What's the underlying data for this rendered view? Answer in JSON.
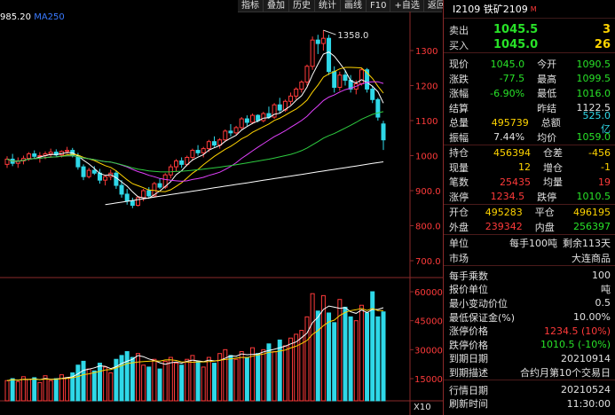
{
  "toolbar": {
    "items": [
      "指标",
      "叠加",
      "历史",
      "统计",
      "画线",
      "F10",
      "+自选",
      "返回"
    ]
  },
  "indicators": {
    "ma250_value": "985.20",
    "ma250_label": "MA250"
  },
  "chart": {
    "high_label": "1358.0",
    "price_ticks": [
      "1300",
      "1200",
      "1100",
      "1000",
      "900.0",
      "800.0",
      "700.0"
    ],
    "volume_ticks": [
      "60000",
      "45000",
      "30000",
      "15000"
    ],
    "volume_unit": "X10",
    "colors": {
      "up": "#ff3a3a",
      "down": "#2fd8e8",
      "ma5": "#ffffff",
      "ma10": "#ffd400",
      "ma20": "#e040fb",
      "ma60": "#2ecc40",
      "ma250": "#ffffff"
    }
  },
  "quote": {
    "title": "I2109 铁矿2109",
    "market_badge": "M",
    "sell": {
      "label": "卖出",
      "price": "1045.5",
      "vol": "3"
    },
    "buy": {
      "label": "买入",
      "price": "1045.0",
      "vol": "26"
    },
    "rows1": [
      {
        "a": "现价",
        "b": "1045.0",
        "bc": "g",
        "c": "今开",
        "d": "1090.5",
        "dc": "g"
      },
      {
        "a": "涨跌",
        "b": "-77.5",
        "bc": "g",
        "c": "最高",
        "d": "1099.5",
        "dc": "g"
      },
      {
        "a": "涨幅",
        "b": "-6.90%",
        "bc": "g",
        "c": "最低",
        "d": "1016.0",
        "dc": "g"
      },
      {
        "a": "结算",
        "b": "",
        "bc": "w",
        "c": "昨结",
        "d": "1122.5",
        "dc": "w"
      },
      {
        "a": "总量",
        "b": "495739",
        "bc": "y",
        "c": "总额",
        "d": "525.0亿",
        "dc": "cy"
      },
      {
        "a": "振幅",
        "b": "7.44%",
        "bc": "w",
        "c": "均价",
        "d": "1059.0",
        "dc": "g"
      }
    ],
    "rows2": [
      {
        "a": "持仓",
        "b": "456394",
        "bc": "y",
        "c": "仓差",
        "d": "-456",
        "dc": "y"
      },
      {
        "a": "现量",
        "b": "12",
        "bc": "y",
        "c": "增仓",
        "d": "-1",
        "dc": "y"
      },
      {
        "a": "笔数",
        "b": "25435",
        "bc": "r",
        "c": "均量",
        "d": "19",
        "dc": "r"
      },
      {
        "a": "涨停",
        "b": "1234.5",
        "bc": "r",
        "c": "跌停",
        "d": "1010.5",
        "dc": "g"
      }
    ],
    "rows3": [
      {
        "a": "开仓",
        "b": "495283",
        "bc": "y",
        "c": "平仓",
        "d": "496195",
        "dc": "y"
      },
      {
        "a": "外盘",
        "b": "239342",
        "bc": "r",
        "c": "内盘",
        "d": "256397",
        "dc": "g"
      }
    ],
    "unit": {
      "label": "单位",
      "value": "每手100吨",
      "remain": "剩余113天"
    },
    "market": {
      "label": "市场",
      "value": "大连商品"
    },
    "info": [
      {
        "k": "每手乘数",
        "v": "100",
        "c": "w"
      },
      {
        "k": "报价单位",
        "v": "吨",
        "c": "w"
      },
      {
        "k": "最小变动价位",
        "v": "0.5",
        "c": "w"
      },
      {
        "k": "最低保证金(%)",
        "v": "10.00%",
        "c": "w"
      },
      {
        "k": "涨停价格",
        "v": "1234.5 (10%)",
        "c": "r"
      },
      {
        "k": "跌停价格",
        "v": "1010.5 (-10%)",
        "c": "g"
      },
      {
        "k": "到期日期",
        "v": "20210914",
        "c": "w"
      },
      {
        "k": "到期描述",
        "v": "合约月第10个交易日",
        "c": "w"
      }
    ],
    "info2": [
      {
        "k": "行情日期",
        "v": "20210524",
        "c": "w"
      },
      {
        "k": "刷新时间",
        "v": "11:30:00",
        "c": "w"
      }
    ]
  },
  "candles": [
    [
      975,
      998,
      965,
      990
    ],
    [
      990,
      1005,
      970,
      978
    ],
    [
      978,
      995,
      965,
      985
    ],
    [
      985,
      1000,
      975,
      992
    ],
    [
      992,
      1010,
      985,
      1005
    ],
    [
      1005,
      1015,
      990,
      998
    ],
    [
      998,
      1010,
      980,
      1000
    ],
    [
      1000,
      1012,
      990,
      1005
    ],
    [
      1005,
      1020,
      995,
      1010
    ],
    [
      1010,
      1018,
      998,
      1002
    ],
    [
      1002,
      1015,
      995,
      1012
    ],
    [
      1012,
      1025,
      1005,
      1015
    ],
    [
      1015,
      1022,
      995,
      1000
    ],
    [
      1000,
      1008,
      960,
      968
    ],
    [
      968,
      975,
      930,
      940
    ],
    [
      940,
      965,
      935,
      958
    ],
    [
      958,
      970,
      945,
      950
    ],
    [
      950,
      962,
      920,
      930
    ],
    [
      930,
      945,
      915,
      940
    ],
    [
      940,
      960,
      930,
      950
    ],
    [
      950,
      958,
      905,
      915
    ],
    [
      915,
      930,
      880,
      890
    ],
    [
      890,
      905,
      860,
      870
    ],
    [
      870,
      880,
      850,
      858
    ],
    [
      858,
      885,
      855,
      880
    ],
    [
      880,
      905,
      870,
      900
    ],
    [
      900,
      910,
      880,
      885
    ],
    [
      885,
      925,
      882,
      920
    ],
    [
      920,
      935,
      905,
      910
    ],
    [
      910,
      950,
      905,
      945
    ],
    [
      945,
      975,
      935,
      968
    ],
    [
      968,
      990,
      955,
      985
    ],
    [
      985,
      995,
      965,
      975
    ],
    [
      975,
      1000,
      970,
      995
    ],
    [
      995,
      1020,
      985,
      1015
    ],
    [
      1015,
      1030,
      1000,
      1008
    ],
    [
      1008,
      1025,
      995,
      1020
    ],
    [
      1020,
      1045,
      1010,
      1040
    ],
    [
      1040,
      1055,
      1025,
      1030
    ],
    [
      1030,
      1050,
      1020,
      1045
    ],
    [
      1045,
      1075,
      1040,
      1070
    ],
    [
      1070,
      1090,
      1055,
      1065
    ],
    [
      1065,
      1085,
      1060,
      1080
    ],
    [
      1080,
      1110,
      1075,
      1105
    ],
    [
      1105,
      1115,
      1085,
      1095
    ],
    [
      1095,
      1120,
      1090,
      1115
    ],
    [
      1115,
      1118,
      1095,
      1100
    ],
    [
      1100,
      1125,
      1095,
      1120
    ],
    [
      1120,
      1140,
      1105,
      1110
    ],
    [
      1110,
      1150,
      1105,
      1145
    ],
    [
      1145,
      1165,
      1120,
      1130
    ],
    [
      1130,
      1160,
      1125,
      1155
    ],
    [
      1155,
      1180,
      1145,
      1170
    ],
    [
      1170,
      1195,
      1160,
      1190
    ],
    [
      1190,
      1215,
      1180,
      1210
    ],
    [
      1210,
      1260,
      1200,
      1255
    ],
    [
      1255,
      1340,
      1245,
      1330
    ],
    [
      1330,
      1345,
      1290,
      1320
    ],
    [
      1320,
      1358,
      1300,
      1335
    ],
    [
      1335,
      1345,
      1230,
      1240
    ],
    [
      1240,
      1255,
      1180,
      1195
    ],
    [
      1195,
      1240,
      1185,
      1230
    ],
    [
      1230,
      1245,
      1200,
      1215
    ],
    [
      1215,
      1230,
      1180,
      1190
    ],
    [
      1190,
      1215,
      1175,
      1205
    ],
    [
      1205,
      1250,
      1200,
      1245
    ],
    [
      1245,
      1250,
      1180,
      1190
    ],
    [
      1190,
      1200,
      1150,
      1160
    ],
    [
      1160,
      1165,
      1100,
      1110
    ],
    [
      1090.5,
      1099.5,
      1016,
      1045
    ]
  ],
  "volumes": [
    14000,
    15000,
    13500,
    16000,
    14500,
    15500,
    13000,
    16500,
    14000,
    15000,
    17000,
    15500,
    18000,
    22000,
    24000,
    20000,
    19000,
    23000,
    21000,
    18000,
    25000,
    27000,
    29000,
    26000,
    28000,
    22000,
    21000,
    25000,
    20000,
    24000,
    26000,
    23000,
    22000,
    25000,
    27000,
    24000,
    21000,
    26000,
    23000,
    28000,
    30000,
    27000,
    25000,
    29000,
    26000,
    31000,
    28000,
    30000,
    33000,
    29000,
    35000,
    32000,
    36000,
    38000,
    40000,
    47000,
    59000,
    50000,
    58000,
    49000,
    44000,
    56000,
    52000,
    47000,
    45000,
    53000,
    49000,
    60000,
    47000,
    49574
  ]
}
